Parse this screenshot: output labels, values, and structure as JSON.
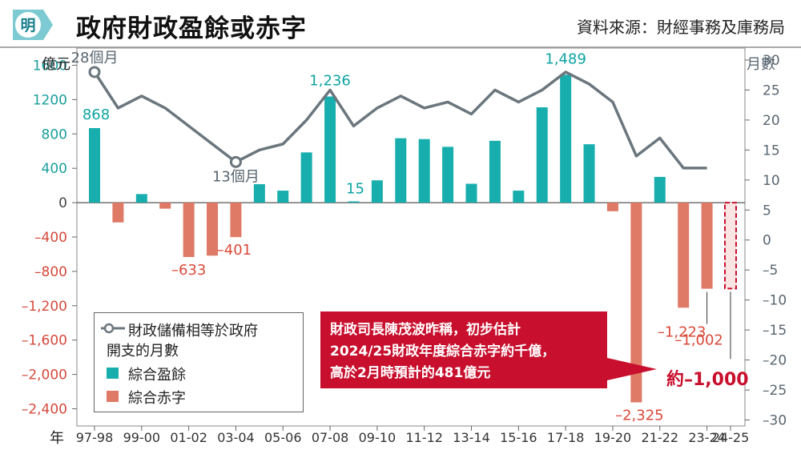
{
  "header": {
    "logo_char": "明",
    "title": "政府財政盈餘或赤字",
    "source": "資料來源：財經事務及庫務局"
  },
  "colors": {
    "surplus": "#19aeae",
    "deficit": "#de7a66",
    "line": "#6b767d",
    "accent": "#c8102e"
  },
  "chart_data": {
    "type": "bar",
    "left_axis_label": "億元",
    "right_axis_label": "月數",
    "x_axis_prefix": "年",
    "x_ticks": [
      "97-98",
      "99-00",
      "01-02",
      "03-04",
      "05-06",
      "07-08",
      "09-10",
      "11-12",
      "13-14",
      "15-16",
      "17-18",
      "19-20",
      "21-22",
      "23-24",
      "24-25"
    ],
    "categories": [
      "97-98",
      "98-99",
      "99-00",
      "00-01",
      "01-02",
      "02-03",
      "03-04",
      "04-05",
      "05-06",
      "06-07",
      "07-08",
      "08-09",
      "09-10",
      "10-11",
      "11-12",
      "12-13",
      "13-14",
      "14-15",
      "15-16",
      "16-17",
      "17-18",
      "18-19",
      "19-20",
      "20-21",
      "21-22",
      "22-23",
      "23-24",
      "24-25"
    ],
    "series": [
      {
        "name": "綜合盈餘",
        "values": [
          868,
          null,
          100,
          null,
          null,
          null,
          null,
          215,
          140,
          585,
          1236,
          15,
          260,
          750,
          740,
          650,
          220,
          720,
          140,
          1110,
          1489,
          680,
          null,
          null,
          300,
          null,
          null,
          null
        ]
      },
      {
        "name": "綜合赤字",
        "values": [
          null,
          -230,
          null,
          -70,
          -633,
          -617,
          -401,
          null,
          null,
          null,
          null,
          null,
          null,
          null,
          null,
          null,
          null,
          null,
          null,
          null,
          null,
          null,
          -100,
          -2325,
          null,
          -1223,
          -1002,
          -1000
        ]
      },
      {
        "name": "財政儲備相等於政府開支的月數",
        "values": [
          28,
          22,
          24,
          22,
          19,
          16,
          13,
          15,
          16,
          20,
          25,
          19,
          22,
          24,
          22,
          23,
          21,
          25,
          23,
          25,
          28,
          26,
          23,
          14,
          17,
          12,
          12,
          null
        ]
      }
    ],
    "estimated_category": "24-25",
    "left_ticks": [
      1600,
      1200,
      800,
      400,
      0,
      -400,
      -800,
      -1200,
      -1600,
      -2000,
      -2400
    ],
    "left_tick_labels": [
      "1600",
      "1200",
      "800",
      "400",
      "0",
      "–400",
      "–800",
      "–1,200",
      "–1,600",
      "–2,000",
      "–2,400"
    ],
    "ylim": [
      -2600,
      1800
    ],
    "right_ticks": [
      30,
      25,
      20,
      15,
      10,
      5,
      0,
      -5,
      -10,
      -15,
      -20,
      -25,
      -30
    ],
    "right_tick_labels": [
      "30",
      "25",
      "20",
      "15",
      "10",
      "5",
      "0",
      "–5",
      "–10",
      "–15",
      "–20",
      "–25",
      "–30"
    ],
    "y2lim": [
      -31,
      32
    ],
    "annotations": {
      "bar_labels": [
        {
          "category": "97-98",
          "text": "868",
          "color": "teal"
        },
        {
          "category": "01-02",
          "text": "–633",
          "color": "red"
        },
        {
          "category": "03-04",
          "text": "–401",
          "color": "red"
        },
        {
          "category": "07-08",
          "text": "1,236",
          "color": "teal"
        },
        {
          "category": "08-09",
          "text": "15",
          "color": "teal"
        },
        {
          "category": "17-18",
          "text": "1,489",
          "color": "teal"
        },
        {
          "category": "20-21",
          "text": "–2,325",
          "color": "red"
        },
        {
          "category": "22-23",
          "text": "–1,223",
          "color": "red"
        },
        {
          "category": "23-24",
          "text": "–1,002",
          "color": "red"
        }
      ],
      "line_labels": [
        {
          "category": "97-98",
          "text": "28個月"
        },
        {
          "category": "03-04",
          "text": "13個月"
        }
      ],
      "estimate_label": "約–1,000"
    }
  },
  "legend": {
    "line_label_1": "財政儲備相等於政府",
    "line_label_2": "開支的月數",
    "surplus_label": "綜合盈餘",
    "deficit_label": "綜合赤字"
  },
  "callout": {
    "line1": "財政司長陳茂波昨稱，初步估計",
    "line2": "2024/25財政年度綜合赤字約千億，",
    "line3": "高於2月時預計的481億元"
  }
}
